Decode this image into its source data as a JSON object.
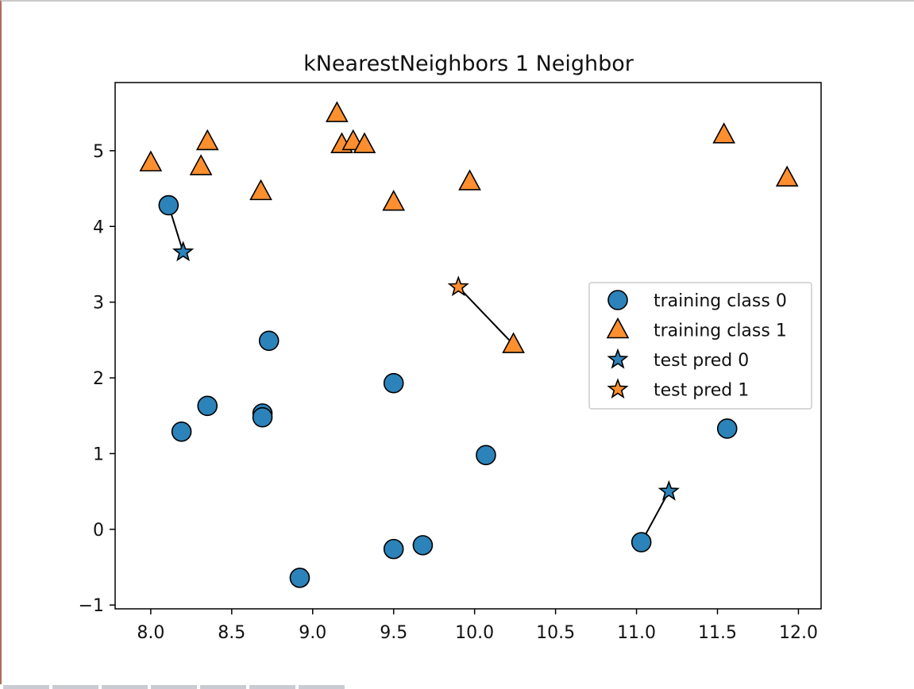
{
  "chart_data": {
    "type": "scatter",
    "title": "kNearestNeighbors 1 Neighbor",
    "xlabel": "",
    "ylabel": "",
    "xlim": [
      7.78,
      12.14
    ],
    "ylim": [
      -1.05,
      5.9
    ],
    "x_ticks": [
      8.0,
      8.5,
      9.0,
      9.5,
      10.0,
      10.5,
      11.0,
      11.5,
      12.0
    ],
    "x_tick_labels": [
      "8.0",
      "8.5",
      "9.0",
      "9.5",
      "10.0",
      "10.5",
      "11.0",
      "11.5",
      "12.0"
    ],
    "y_ticks": [
      -1,
      0,
      1,
      2,
      3,
      4,
      5
    ],
    "y_tick_labels": [
      "−1",
      "0",
      "1",
      "2",
      "3",
      "4",
      "5"
    ],
    "grid": false,
    "legend_position": "center-right",
    "series": [
      {
        "name": "training class 0",
        "marker": "circle",
        "color": "#2b83ba",
        "points": [
          [
            8.11,
            4.28
          ],
          [
            8.19,
            1.29
          ],
          [
            8.35,
            1.63
          ],
          [
            8.69,
            1.53
          ],
          [
            8.69,
            1.48
          ],
          [
            8.73,
            2.49
          ],
          [
            8.92,
            -0.64
          ],
          [
            9.5,
            1.93
          ],
          [
            9.5,
            -0.26
          ],
          [
            9.68,
            -0.21
          ],
          [
            10.07,
            0.98
          ],
          [
            11.03,
            -0.17
          ],
          [
            11.56,
            1.33
          ]
        ]
      },
      {
        "name": "training class 1",
        "marker": "triangle",
        "color": "#fd8f2f",
        "points": [
          [
            8.0,
            4.84
          ],
          [
            8.31,
            4.79
          ],
          [
            8.35,
            5.12
          ],
          [
            8.68,
            4.46
          ],
          [
            9.15,
            5.49
          ],
          [
            9.18,
            5.08
          ],
          [
            9.25,
            5.12
          ],
          [
            9.32,
            5.08
          ],
          [
            9.5,
            4.32
          ],
          [
            9.97,
            4.59
          ],
          [
            10.24,
            2.44
          ],
          [
            11.54,
            5.21
          ],
          [
            11.93,
            4.64
          ]
        ]
      },
      {
        "name": "test pred 0",
        "marker": "star",
        "color": "#2b83ba",
        "points": [
          [
            8.2,
            3.66
          ],
          [
            11.2,
            0.5
          ]
        ]
      },
      {
        "name": "test pred 1",
        "marker": "star",
        "color": "#fd8f2f",
        "points": [
          [
            9.9,
            3.2
          ]
        ]
      }
    ],
    "neighbor_links": [
      [
        [
          8.2,
          3.66
        ],
        [
          8.11,
          4.28
        ]
      ],
      [
        [
          9.9,
          3.2
        ],
        [
          10.24,
          2.44
        ]
      ],
      [
        [
          11.2,
          0.5
        ],
        [
          11.03,
          -0.17
        ]
      ]
    ]
  }
}
